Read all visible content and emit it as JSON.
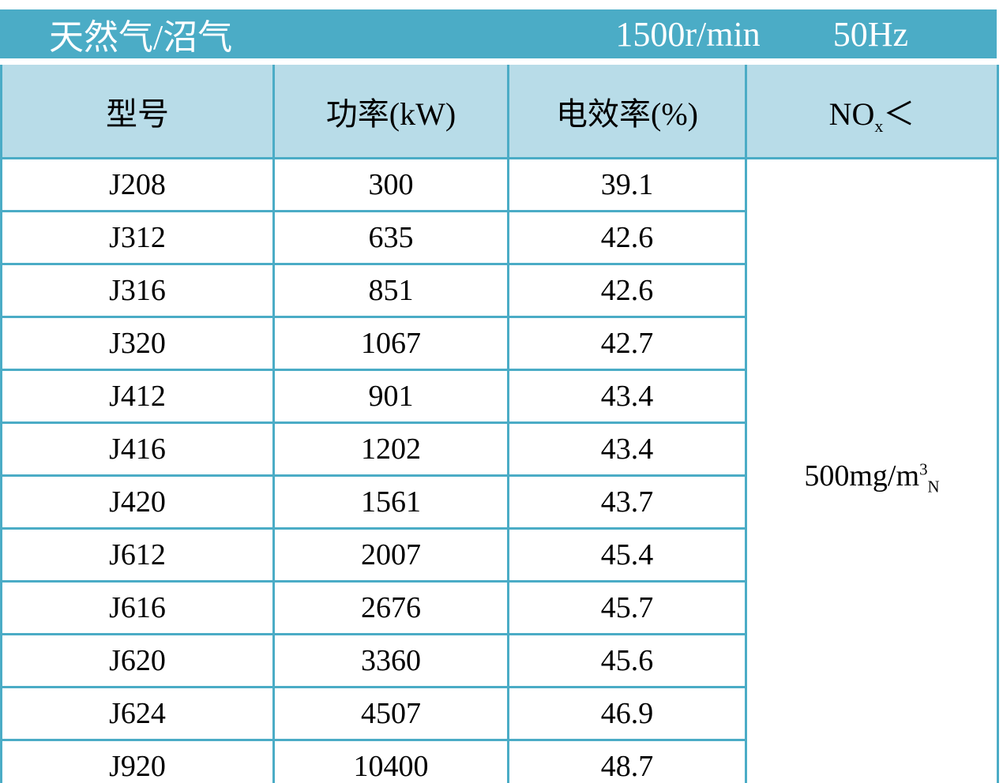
{
  "colors": {
    "band_background": "#4BACC6",
    "grid_border": "#4BACC6",
    "header_row_background": "#B8DCE8",
    "band_text": "#FFFFFF",
    "cell_text": "#000000"
  },
  "chart_data": {
    "type": "table",
    "title": "天然气/沼气",
    "title_bar": {
      "fuel_label": "天然气/沼气",
      "speed": "1500r/min",
      "frequency": "50Hz"
    },
    "columns": [
      "型号",
      "功率(kW)",
      "电效率(%)",
      "NOx＜"
    ],
    "nox_header": {
      "base": "NO",
      "sub": "x",
      "lt": "＜"
    },
    "rows": [
      {
        "model": "J208",
        "power": "300",
        "efficiency": "39.1"
      },
      {
        "model": "J312",
        "power": "635",
        "efficiency": "42.6"
      },
      {
        "model": "J316",
        "power": "851",
        "efficiency": "42.6"
      },
      {
        "model": "J320",
        "power": "1067",
        "efficiency": "42.7"
      },
      {
        "model": "J412",
        "power": "901",
        "efficiency": "43.4"
      },
      {
        "model": "J416",
        "power": "1202",
        "efficiency": "43.4"
      },
      {
        "model": "J420",
        "power": "1561",
        "efficiency": "43.7"
      },
      {
        "model": "J612",
        "power": "2007",
        "efficiency": "45.4"
      },
      {
        "model": "J616",
        "power": "2676",
        "efficiency": "45.7"
      },
      {
        "model": "J620",
        "power": "3360",
        "efficiency": "45.6"
      },
      {
        "model": "J624",
        "power": "4507",
        "efficiency": "46.9"
      },
      {
        "model": "J920",
        "power": "10400",
        "efficiency": "48.7"
      }
    ],
    "nox_limit": {
      "base": "500mg/m",
      "sup": "3",
      "sub": "N",
      "display": "500mg/m3N"
    }
  }
}
